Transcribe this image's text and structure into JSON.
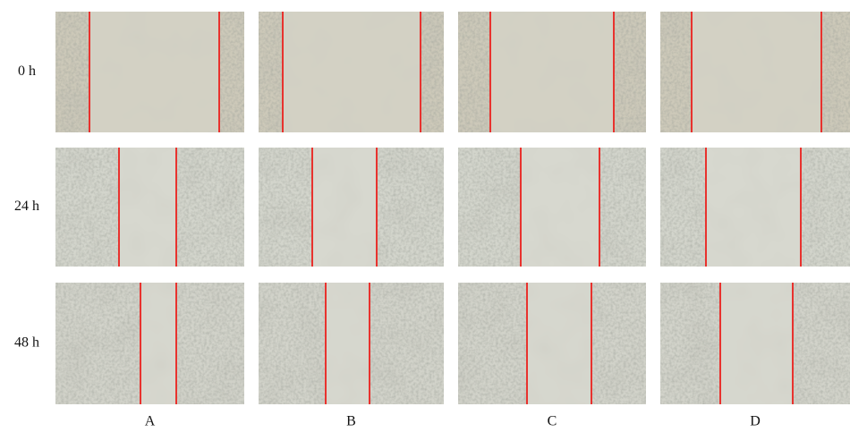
{
  "row_labels": [
    "0 h",
    "24 h",
    "48 h"
  ],
  "column_labels": [
    "A",
    "B",
    "C",
    "D"
  ]
}
